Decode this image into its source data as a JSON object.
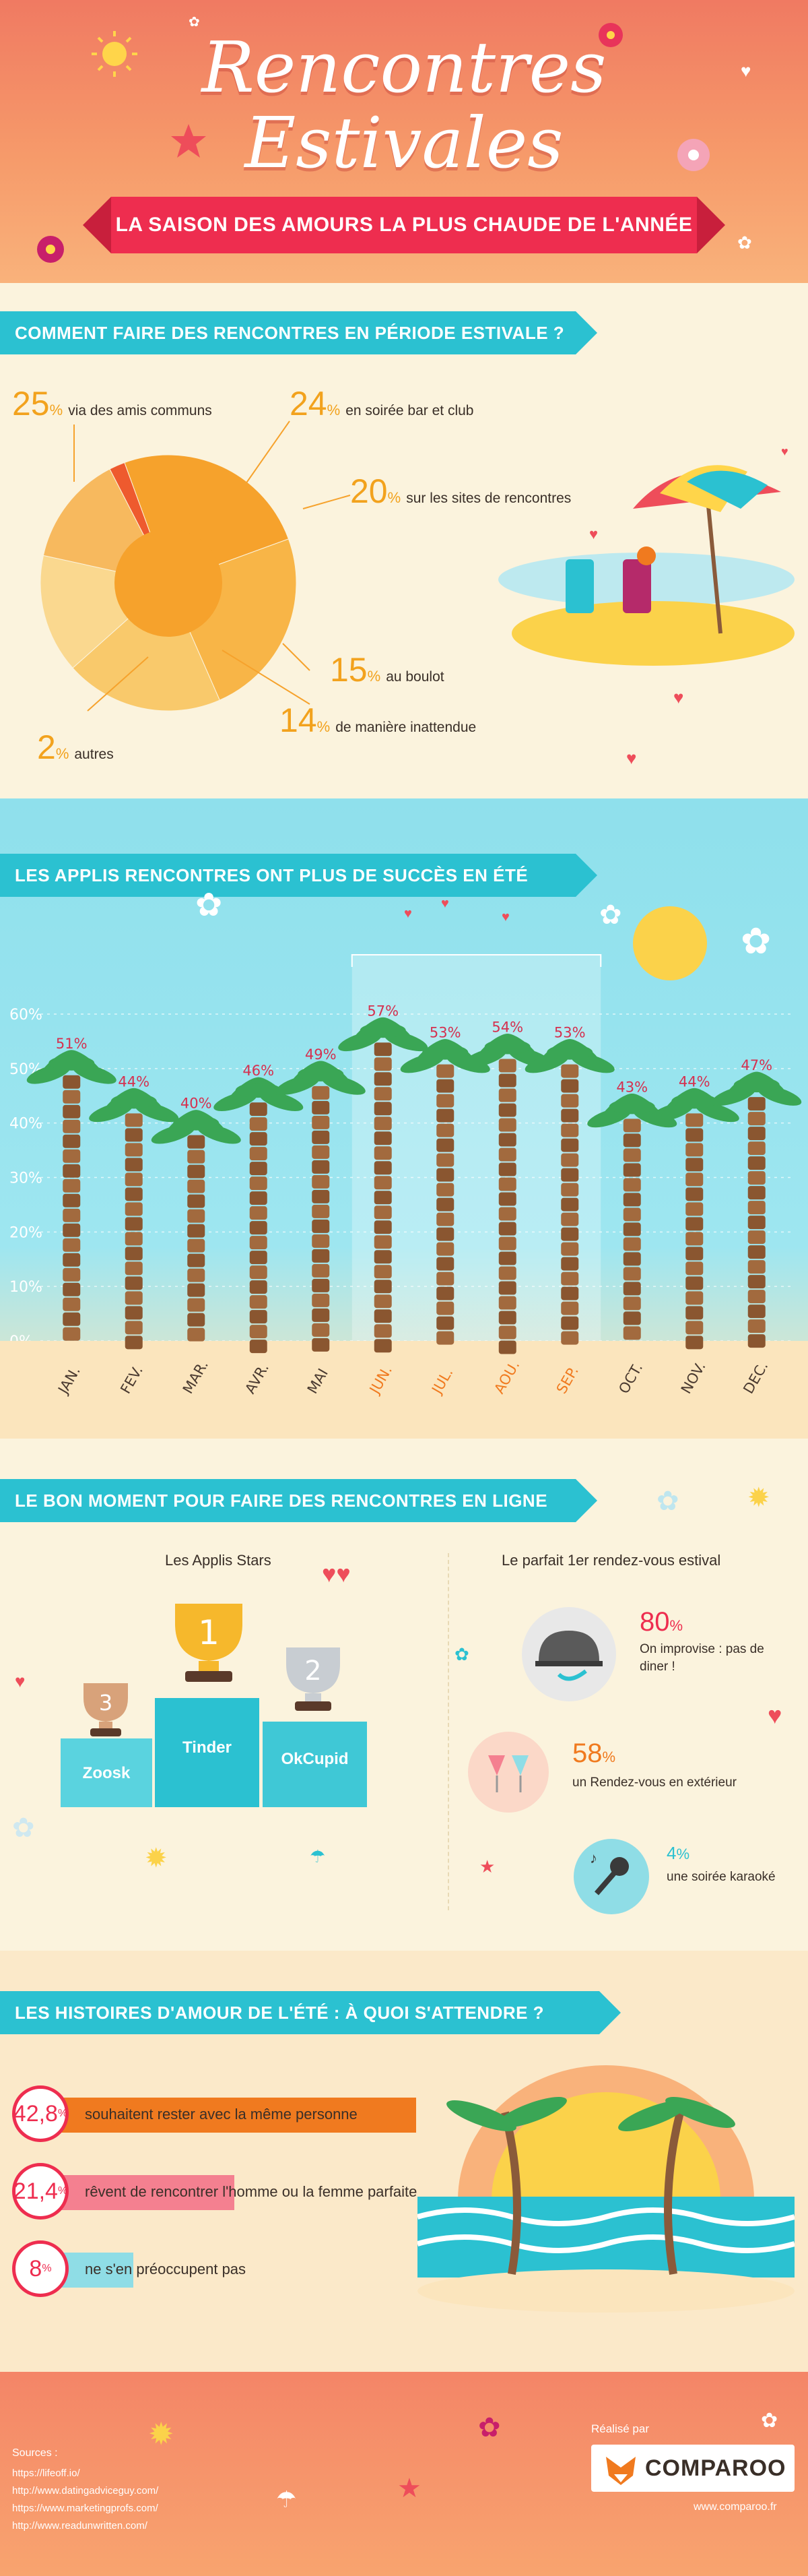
{
  "header": {
    "title_line1": "Rencontres",
    "title_line2": "Estivales",
    "subtitle": "LA SAISON DES AMOURS LA PLUS CHAUDE DE L'ANNÉE"
  },
  "section1": {
    "heading": "COMMENT FAIRE DES RENCONTRES EN PÉRIODE ESTIVALE ?",
    "items": [
      {
        "value": "25",
        "unit": "%",
        "label": "via des amis communs"
      },
      {
        "value": "24",
        "unit": "%",
        "label": "en soirée bar et club"
      },
      {
        "value": "20",
        "unit": "%",
        "label": "sur les sites de rencontres"
      },
      {
        "value": "15",
        "unit": "%",
        "label": "au boulot"
      },
      {
        "value": "14",
        "unit": "%",
        "label": "de manière inattendue"
      },
      {
        "value": "2",
        "unit": "%",
        "label": "autres"
      }
    ],
    "colors": [
      "#f6a22c",
      "#f8b547",
      "#f9c96b",
      "#fad88f",
      "#f7b95e",
      "#ee5a2e"
    ]
  },
  "chart_data": {
    "type": "bar",
    "title": "LES APPLIS RENCONTRES ONT PLUS DE SUCCÈS EN ÉTÉ",
    "categories": [
      "JAN.",
      "FEV.",
      "MAR.",
      "AVR.",
      "MAI",
      "JUN.",
      "JUL.",
      "AOU.",
      "SEP.",
      "OCT.",
      "NOV.",
      "DEC."
    ],
    "values": [
      51,
      44,
      40,
      46,
      49,
      57,
      53,
      54,
      53,
      43,
      44,
      47
    ],
    "value_labels": [
      "51%",
      "44%",
      "40%",
      "46%",
      "49%",
      "57%",
      "53%",
      "54%",
      "53%",
      "43%",
      "44%",
      "47%"
    ],
    "yticks": [
      "60%",
      "50%",
      "40%",
      "30%",
      "20%",
      "10%",
      "0%"
    ],
    "ylim": [
      0,
      60
    ],
    "highlight": [
      "JUN.",
      "JUL.",
      "AOU.",
      "SEP."
    ]
  },
  "section3": {
    "heading": "LE BON MOMENT POUR FAIRE DES RENCONTRES EN LIGNE",
    "apps_title": "Les Applis Stars",
    "podium": [
      {
        "rank": "1",
        "name": "Tinder"
      },
      {
        "rank": "2",
        "name": "OkCupid"
      },
      {
        "rank": "3",
        "name": "Zoosk"
      }
    ],
    "date_title": "Le parfait 1er rendez-vous estival",
    "dates": [
      {
        "value": "80",
        "unit": "%",
        "label": "On improvise : pas de diner !"
      },
      {
        "value": "58",
        "unit": "%",
        "label": "un Rendez-vous en extérieur"
      },
      {
        "value": "4",
        "unit": "%",
        "label": "une soirée karaoké"
      }
    ]
  },
  "section4": {
    "heading": "LES HISTOIRES D'AMOUR DE L'ÉTÉ : À QUOI S'ATTENDRE ?",
    "items": [
      {
        "value": "42,8",
        "unit": "%",
        "label": "souhaitent rester avec la même personne",
        "pct": 42.8,
        "color": "#f07a1f"
      },
      {
        "value": "21,4",
        "unit": "%",
        "label": "rêvent de rencontrer l'homme ou la femme parfaite",
        "pct": 21.4,
        "color": "#f48090"
      },
      {
        "value": "8",
        "unit": "%",
        "label": "ne s'en préoccupent pas",
        "pct": 8,
        "color": "#8fdde6"
      }
    ]
  },
  "footer": {
    "sources_title": "Sources :",
    "sources": [
      "https://lifeoff.io/",
      "http://www.datingadviceguy.com/",
      "https://www.marketingprofs.com/",
      "http://www.readunwritten.com/"
    ],
    "made_by": "Réalisé par",
    "brand": "COMPAROO",
    "website": "www.comparoo.fr"
  }
}
